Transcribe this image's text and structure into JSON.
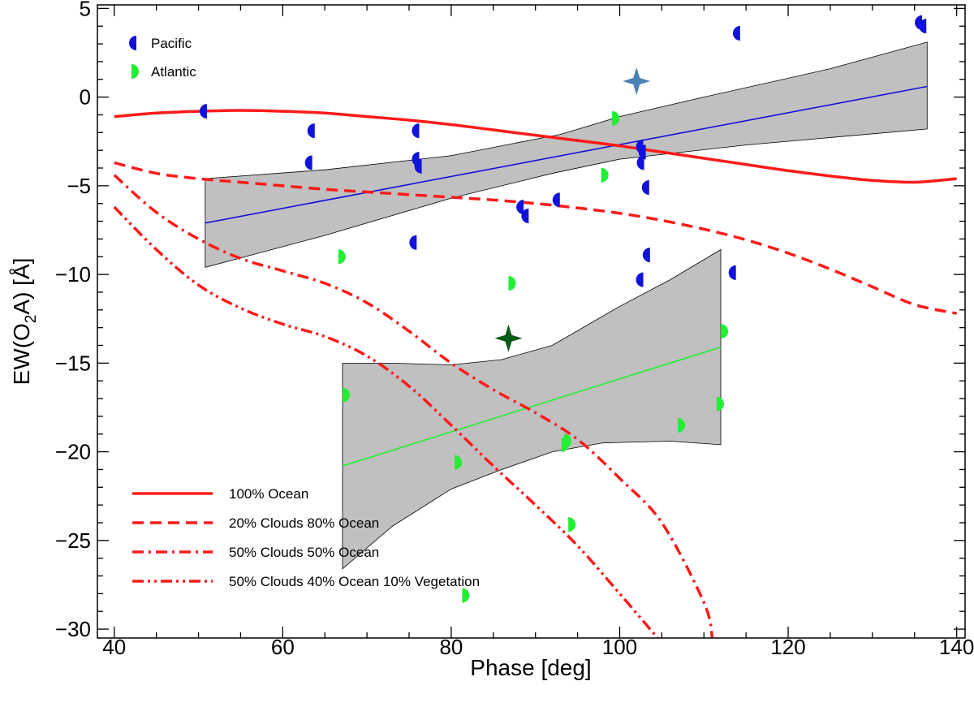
{
  "chart_data": {
    "type": "scatter",
    "xlabel": "Phase [deg]",
    "ylabel": "EW(O2 A) [Å]",
    "ylabel_parts": {
      "pre": "EW(O",
      "sub": "2",
      "post": "A) [Å]"
    },
    "xlim": [
      38,
      141
    ],
    "ylim": [
      -30.5,
      5.2
    ],
    "xticks": [
      40,
      60,
      80,
      100,
      120,
      140
    ],
    "xtick_labels": [
      "40",
      "60",
      "80",
      "100",
      "120",
      "140"
    ],
    "yticks": [
      5,
      0,
      -5,
      -10,
      -15,
      -20,
      -25,
      -30
    ],
    "ytick_labels": [
      "5",
      "0",
      "−5",
      "−10",
      "−15",
      "−20",
      "−25",
      "−30"
    ],
    "x_minor_step": 5,
    "y_minor_step": 1,
    "series": [
      {
        "name": "Pacific",
        "marker": "left-half-circle",
        "color": "#1111dd",
        "x": [
          51,
          63.8,
          63.5,
          76.2,
          76.2,
          76.5,
          75.9,
          88.6,
          89.2,
          92.9,
          102.8,
          103.1,
          102.9,
          103.5,
          103.6,
          102.8,
          113.8,
          114.3,
          135.9,
          136.4
        ],
        "y": [
          -0.8,
          -1.9,
          -3.7,
          -1.9,
          -3.5,
          -3.9,
          -8.2,
          -6.2,
          -6.7,
          -5.8,
          -2.8,
          -3.1,
          -3.7,
          -5.1,
          -8.9,
          -10.3,
          -9.9,
          3.6,
          4.2,
          4.0
        ]
      },
      {
        "name": "Atlantic",
        "marker": "right-half-circle",
        "color": "#22ee33",
        "x": [
          99.1,
          97.8,
          66.6,
          86.8,
          112.0,
          67.1,
          111.5,
          106.9,
          93.1,
          93.4,
          80.4,
          93.9,
          81.3
        ],
        "y": [
          -1.2,
          -4.4,
          -9.0,
          -10.5,
          -13.2,
          -16.8,
          -17.3,
          -18.5,
          -19.6,
          -19.4,
          -20.6,
          -24.1,
          -28.1
        ]
      }
    ],
    "special_points": [
      {
        "name": "pacific-star",
        "x": 102.0,
        "y": 0.9,
        "color": "#4a82b4"
      },
      {
        "name": "atlantic-star",
        "x": 86.8,
        "y": -13.6,
        "color": "#0b5a14"
      }
    ],
    "fits": [
      {
        "name": "pacific-fit",
        "color": "#1111dd",
        "line": [
          [
            50.8,
            -7.1
          ],
          [
            136.5,
            0.6
          ]
        ],
        "band_upper": [
          [
            50.8,
            -4.6
          ],
          [
            65,
            -4.1
          ],
          [
            80,
            -3.3
          ],
          [
            93,
            -2.1
          ],
          [
            100,
            -1.1
          ],
          [
            110,
            0.0
          ],
          [
            125,
            1.6
          ],
          [
            136.5,
            3.1
          ]
        ],
        "band_lower": [
          [
            50.8,
            -9.6
          ],
          [
            65,
            -7.8
          ],
          [
            80,
            -5.7
          ],
          [
            92,
            -4.3
          ],
          [
            100,
            -3.5
          ],
          [
            115,
            -2.7
          ],
          [
            136.5,
            -1.8
          ]
        ]
      },
      {
        "name": "atlantic-fit",
        "color": "#22ee33",
        "line": [
          [
            67.1,
            -20.8
          ],
          [
            112.0,
            -14.1
          ]
        ],
        "band_upper": [
          [
            67.1,
            -15.0
          ],
          [
            73,
            -15.0
          ],
          [
            80,
            -15.1
          ],
          [
            86,
            -14.8
          ],
          [
            92,
            -14.0
          ],
          [
            100,
            -11.8
          ],
          [
            106,
            -10.3
          ],
          [
            112,
            -8.6
          ]
        ],
        "band_lower": [
          [
            67.1,
            -26.6
          ],
          [
            73,
            -24.2
          ],
          [
            80,
            -22.1
          ],
          [
            86,
            -21.0
          ],
          [
            92,
            -20.0
          ],
          [
            98,
            -19.5
          ],
          [
            106,
            -19.4
          ],
          [
            112,
            -19.6
          ]
        ]
      }
    ],
    "models": [
      {
        "name": "100% Ocean",
        "dash": "solid",
        "points": [
          [
            40,
            -1.1
          ],
          [
            45,
            -0.9
          ],
          [
            50,
            -0.8
          ],
          [
            55,
            -0.75
          ],
          [
            60,
            -0.8
          ],
          [
            65,
            -0.9
          ],
          [
            70,
            -1.1
          ],
          [
            75,
            -1.3
          ],
          [
            80,
            -1.55
          ],
          [
            85,
            -1.85
          ],
          [
            90,
            -2.15
          ],
          [
            95,
            -2.45
          ],
          [
            100,
            -2.75
          ],
          [
            105,
            -3.1
          ],
          [
            110,
            -3.45
          ],
          [
            115,
            -3.8
          ],
          [
            120,
            -4.15
          ],
          [
            125,
            -4.45
          ],
          [
            130,
            -4.7
          ],
          [
            135,
            -4.8
          ],
          [
            140,
            -4.6
          ]
        ]
      },
      {
        "name": "20% Clouds 80% Ocean",
        "dash": "dashed",
        "points": [
          [
            40,
            -3.7
          ],
          [
            45,
            -4.3
          ],
          [
            50,
            -4.6
          ],
          [
            55,
            -4.8
          ],
          [
            60,
            -5.0
          ],
          [
            65,
            -5.2
          ],
          [
            70,
            -5.35
          ],
          [
            75,
            -5.5
          ],
          [
            80,
            -5.65
          ],
          [
            85,
            -5.8
          ],
          [
            90,
            -6.0
          ],
          [
            95,
            -6.25
          ],
          [
            100,
            -6.55
          ],
          [
            105,
            -6.95
          ],
          [
            110,
            -7.45
          ],
          [
            115,
            -8.05
          ],
          [
            120,
            -8.8
          ],
          [
            125,
            -9.7
          ],
          [
            130,
            -10.7
          ],
          [
            135,
            -11.7
          ],
          [
            140,
            -12.2
          ]
        ]
      },
      {
        "name": "50% Clouds 50% Ocean",
        "dash": "dashdot",
        "points": [
          [
            40,
            -4.4
          ],
          [
            45,
            -6.5
          ],
          [
            50,
            -8.0
          ],
          [
            55,
            -9.1
          ],
          [
            60,
            -9.8
          ],
          [
            65,
            -10.5
          ],
          [
            70,
            -11.6
          ],
          [
            75,
            -13.2
          ],
          [
            80,
            -15.0
          ],
          [
            85,
            -16.5
          ],
          [
            90,
            -17.8
          ],
          [
            95,
            -19.3
          ],
          [
            100,
            -21.5
          ],
          [
            105,
            -24.0
          ],
          [
            110,
            -28.5
          ],
          [
            111,
            -30.5
          ]
        ]
      },
      {
        "name": "50% Clouds 40% Ocean 10% Vegetation",
        "dash": "dashdotdot",
        "points": [
          [
            40,
            -6.2
          ],
          [
            45,
            -8.6
          ],
          [
            50,
            -10.6
          ],
          [
            55,
            -11.9
          ],
          [
            60,
            -12.8
          ],
          [
            65,
            -13.5
          ],
          [
            70,
            -14.6
          ],
          [
            75,
            -16.3
          ],
          [
            80,
            -18.5
          ],
          [
            85,
            -20.8
          ],
          [
            90,
            -23.0
          ],
          [
            95,
            -25.3
          ],
          [
            100,
            -28.0
          ],
          [
            104.5,
            -30.5
          ]
        ]
      }
    ],
    "legend_markers": [
      {
        "label": "Pacific",
        "placement": "top-left"
      },
      {
        "label": "Atlantic",
        "placement": "top-left"
      }
    ],
    "legend_lines": [
      "100% Ocean",
      "20% Clouds 80% Ocean",
      "50% Clouds 50% Ocean",
      "50% Clouds 40% Ocean 10% Vegetation"
    ],
    "model_color": "#ff1a1a",
    "band_color": "#c0c0c0"
  }
}
